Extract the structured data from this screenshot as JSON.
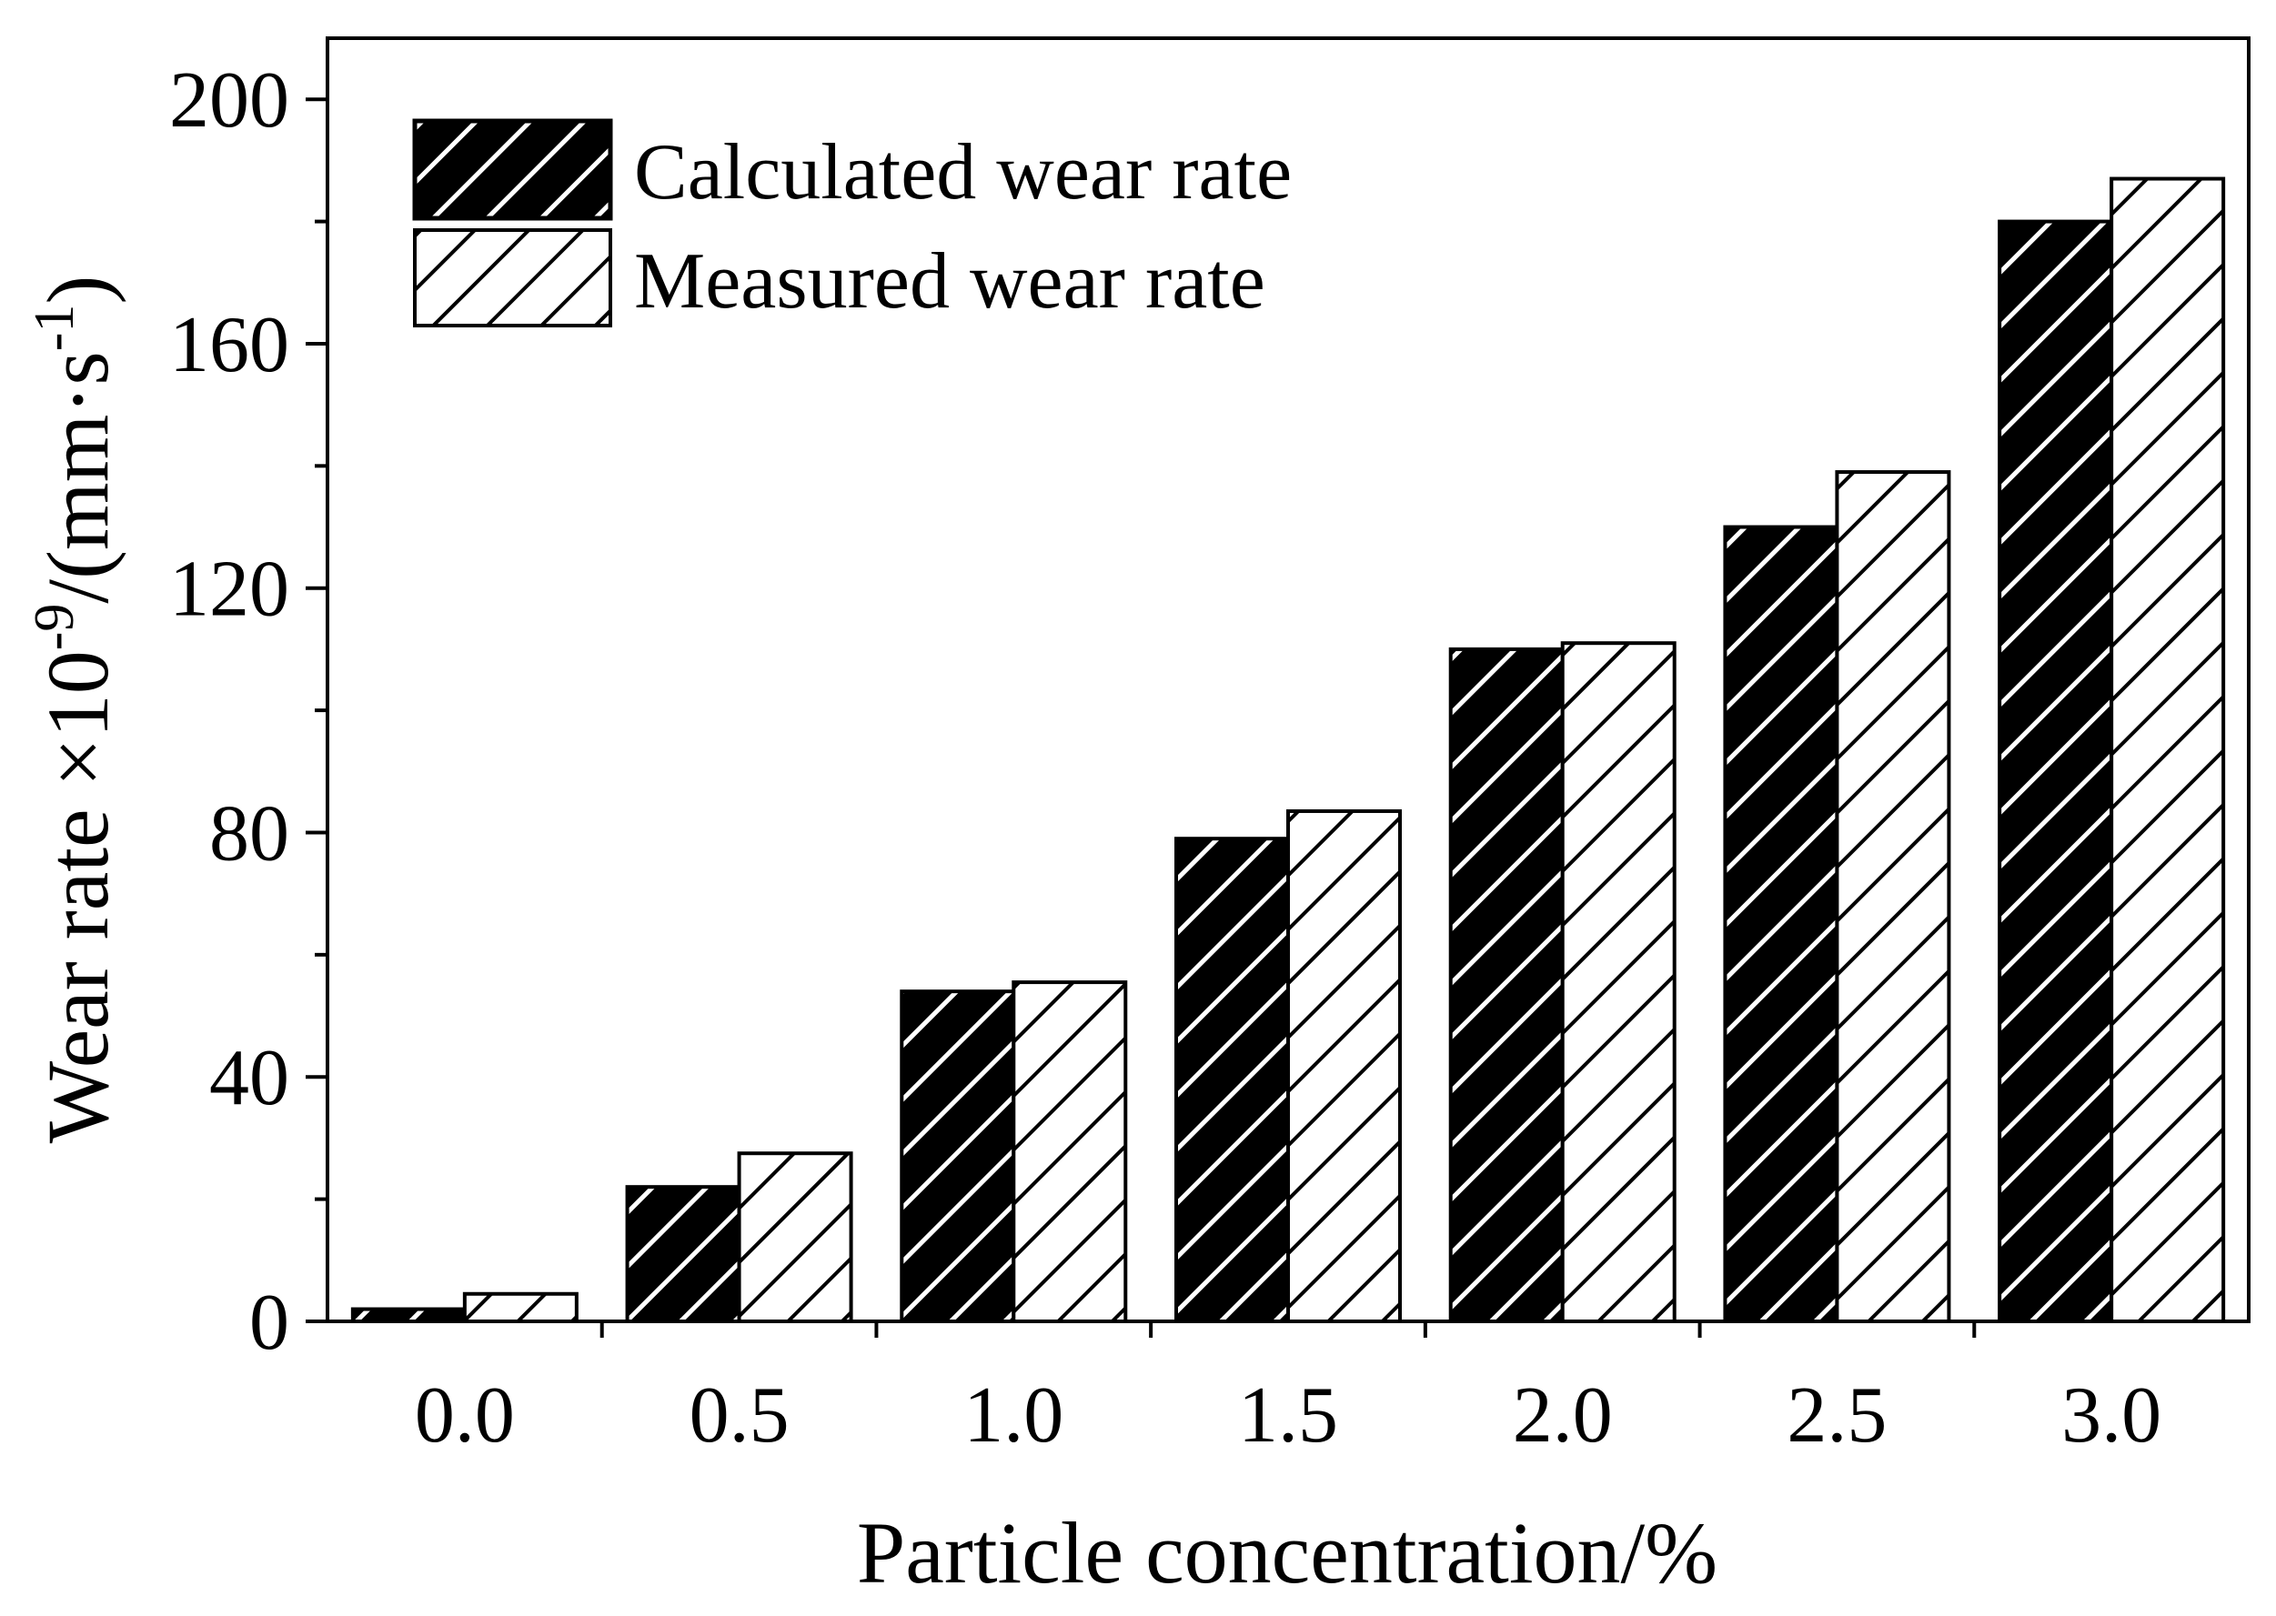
{
  "chart_data": {
    "type": "bar",
    "title": "",
    "xlabel": "Particle concentration/%",
    "ylabel": {
      "base": "Wear rate ×10",
      "exp": "-9",
      "unit_open": "/(mm·s",
      "unit_exp": "-1",
      "unit_close": ")"
    },
    "categories": [
      "0.0",
      "0.5",
      "1.0",
      "1.5",
      "2.0",
      "2.5",
      "3.0"
    ],
    "series": [
      {
        "name": "Calculated wear rate",
        "style": "black-hatched",
        "values": [
          2,
          22,
          54,
          79,
          110,
          130,
          180
        ]
      },
      {
        "name": "Measured wear rate",
        "style": "white-hatched",
        "values": [
          4.5,
          27.5,
          55.5,
          83.5,
          111,
          139,
          187
        ]
      }
    ],
    "ylim": [
      0,
      210
    ],
    "yticks": [
      0,
      40,
      80,
      120,
      160,
      200
    ],
    "yminor_step": 20,
    "grid": false,
    "legend_position": "top-left",
    "colors": {
      "calculated_fill": "#000000",
      "measured_fill": "#ffffff",
      "hatch_on_dark": "#ffffff",
      "hatch_on_light": "#000000",
      "axis": "#000000"
    }
  }
}
